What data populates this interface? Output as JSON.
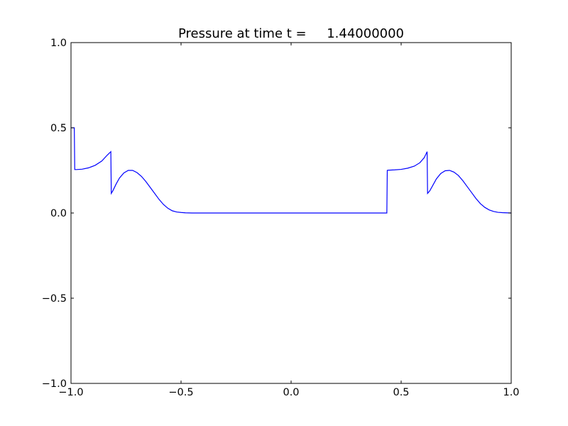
{
  "chart_data": {
    "type": "line",
    "title": "Pressure at time t =     1.44000000",
    "xlabel": "",
    "ylabel": "",
    "xlim": [
      -1.0,
      1.0
    ],
    "ylim": [
      -1.0,
      1.0
    ],
    "xticks": [
      -1.0,
      -0.5,
      0.0,
      0.5,
      1.0
    ],
    "xtick_labels": [
      "−1.0",
      "−0.5",
      "0.0",
      "0.5",
      "1.0"
    ],
    "yticks": [
      -1.0,
      -0.5,
      0.0,
      0.5,
      1.0
    ],
    "ytick_labels": [
      "−1.0",
      "−0.5",
      "0.0",
      "0.5",
      "1.0"
    ],
    "grid": false,
    "line_color": "#0000ff",
    "series": [
      {
        "x": [
          -1.0,
          -0.985,
          -0.983,
          -0.975,
          -0.95,
          -0.92,
          -0.89,
          -0.86,
          -0.835,
          -0.819,
          -0.817,
          -0.81,
          -0.795,
          -0.78,
          -0.76,
          -0.74,
          -0.72,
          -0.7,
          -0.68,
          -0.66,
          -0.64,
          -0.62,
          -0.6,
          -0.58,
          -0.56,
          -0.54,
          -0.52,
          -0.5,
          -0.48,
          -0.45,
          -0.4,
          -0.3,
          -0.2,
          0.0,
          0.2,
          0.4,
          0.435,
          0.437,
          0.44,
          0.47,
          0.5,
          0.53,
          0.56,
          0.585,
          0.605,
          0.618,
          0.62,
          0.63,
          0.645,
          0.66,
          0.68,
          0.7,
          0.72,
          0.74,
          0.76,
          0.78,
          0.8,
          0.82,
          0.84,
          0.86,
          0.88,
          0.9,
          0.92,
          0.94,
          0.96,
          0.98,
          1.0
        ],
        "y": [
          0.5,
          0.5,
          0.255,
          0.255,
          0.257,
          0.265,
          0.28,
          0.305,
          0.34,
          0.36,
          0.115,
          0.13,
          0.17,
          0.205,
          0.235,
          0.25,
          0.25,
          0.237,
          0.215,
          0.185,
          0.15,
          0.115,
          0.08,
          0.05,
          0.028,
          0.013,
          0.006,
          0.003,
          0.001,
          0.0,
          0.0,
          0.0,
          0.0,
          0.0,
          0.0,
          0.0,
          0.0,
          0.25,
          0.251,
          0.253,
          0.256,
          0.263,
          0.275,
          0.295,
          0.325,
          0.36,
          0.115,
          0.13,
          0.165,
          0.2,
          0.232,
          0.248,
          0.25,
          0.24,
          0.22,
          0.19,
          0.155,
          0.12,
          0.085,
          0.055,
          0.033,
          0.018,
          0.009,
          0.004,
          0.002,
          0.001,
          0.0
        ]
      }
    ]
  }
}
